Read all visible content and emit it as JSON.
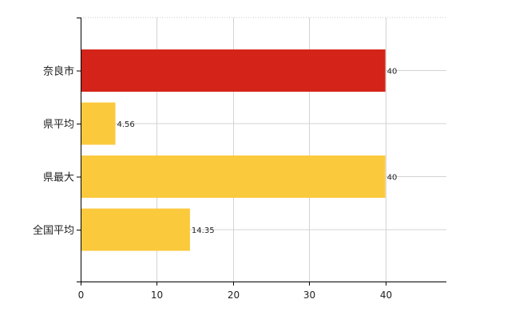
{
  "chart_data": {
    "type": "bar",
    "orientation": "horizontal",
    "categories": [
      "奈良市",
      "県平均",
      "県最大",
      "全国平均"
    ],
    "values": [
      40,
      4.56,
      40,
      14.35
    ],
    "data_labels": [
      "40",
      "4.56",
      "40",
      "14.35"
    ],
    "bar_colors": [
      "#d42318",
      "#fbc93c",
      "#fbc93c",
      "#fbc93c"
    ],
    "xlim": [
      0,
      48
    ],
    "xticks": [
      0,
      10,
      20,
      30,
      40
    ],
    "xtick_labels": [
      "0",
      "10",
      "20",
      "30",
      "40"
    ],
    "grid": true,
    "legend": false
  }
}
